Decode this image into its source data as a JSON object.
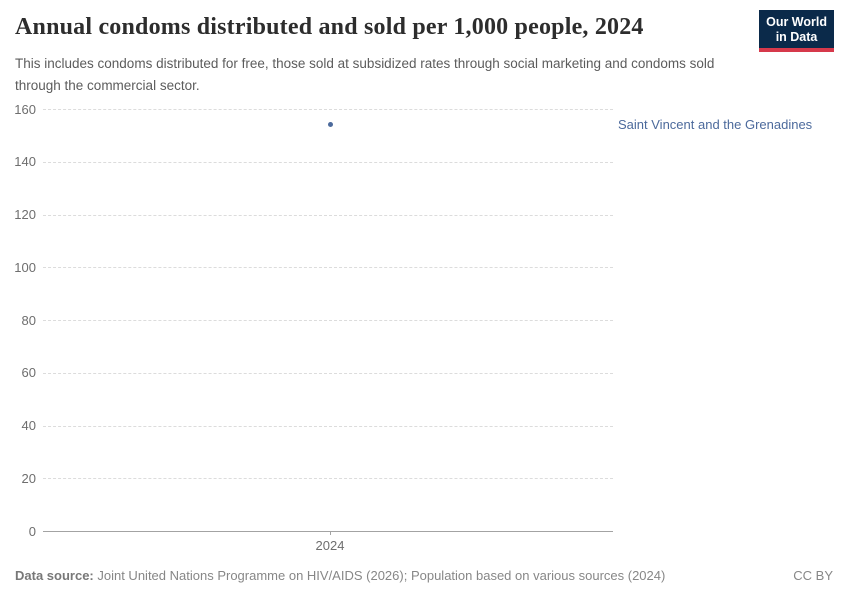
{
  "header": {
    "title": "Annual condoms distributed and sold per 1,000 people, 2024",
    "subtitle": "This includes condoms distributed for free, those sold at subsidized rates through social marketing and condoms sold through the commercial sector.",
    "logo": {
      "line1": "Our World",
      "line2": "in Data"
    }
  },
  "chart_data": {
    "type": "scatter",
    "title": "Annual condoms distributed and sold per 1,000 people, 2024",
    "x": [
      2024
    ],
    "series": [
      {
        "name": "Saint Vincent and the Grenadines",
        "values": [
          154
        ],
        "color": "#4C6A9C"
      }
    ],
    "xlabel": "",
    "ylabel": "",
    "ylim": [
      0,
      160
    ],
    "yticks": [
      0,
      20,
      40,
      60,
      80,
      100,
      120,
      140,
      160
    ],
    "xticks": [
      2024
    ],
    "grid": true,
    "grid_style": "dashed",
    "legend_position": "entity label right of plot"
  },
  "footer": {
    "datasource_label": "Data source:",
    "datasource_text": " Joint United Nations Programme on HIV/AIDS (2026); Population based on various sources (2024)",
    "license": "CC BY"
  },
  "colors": {
    "accent_blue": "#4C6A9C",
    "logo_background": "#0b2a4a",
    "logo_red": "#d6394b",
    "gridline": "#dcdcdc",
    "axis": "#a3a3a3",
    "tick_text": "#6e6e6e",
    "subtitle_text": "#5c5c5c",
    "footer_text": "#878787"
  }
}
